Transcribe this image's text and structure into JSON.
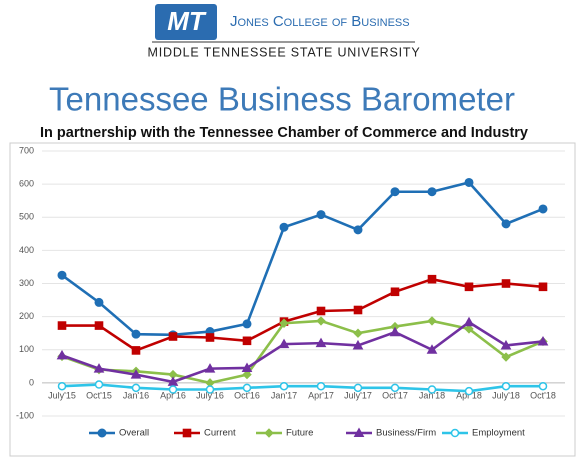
{
  "header": {
    "logo": "MT",
    "college": "Jones College of Business",
    "university": "MIDDLE TENNESSEE STATE UNIVERSITY"
  },
  "chart_data": {
    "type": "line",
    "title": "Tennessee Business Barometer",
    "subtitle": "In partnership with the Tennessee Chamber of Commerce and Industry",
    "categories": [
      "July'15",
      "Oct'15",
      "Jan'16",
      "Apr'16",
      "July'16",
      "Oct'16",
      "Jan'17",
      "Apr'17",
      "July'17",
      "Oct'17",
      "Jan'18",
      "Apr'18",
      "July'18",
      "Oct'18"
    ],
    "series": [
      {
        "name": "Overall",
        "color": "#1f6fb5",
        "marker": "circle",
        "values": [
          325,
          243,
          147,
          145,
          155,
          178,
          470,
          508,
          462,
          577,
          577,
          605,
          480,
          525
        ]
      },
      {
        "name": "Current",
        "color": "#c00000",
        "marker": "square",
        "values": [
          173,
          173,
          98,
          140,
          137,
          127,
          185,
          217,
          220,
          275,
          313,
          290,
          300,
          290
        ]
      },
      {
        "name": "Future",
        "color": "#8cbf4a",
        "marker": "diamond",
        "values": [
          80,
          40,
          35,
          25,
          0,
          25,
          180,
          187,
          150,
          170,
          187,
          163,
          78,
          125
        ]
      },
      {
        "name": "Business/Firm",
        "color": "#7030a0",
        "marker": "triangle",
        "values": [
          83,
          43,
          25,
          3,
          43,
          45,
          117,
          120,
          113,
          153,
          100,
          183,
          113,
          125
        ]
      },
      {
        "name": "Employment",
        "color": "#2ec4e8",
        "marker": "open-circle",
        "values": [
          -10,
          -5,
          -15,
          -20,
          -20,
          -15,
          -10,
          -10,
          -15,
          -15,
          -20,
          -25,
          -10,
          -10
        ]
      }
    ],
    "ylim": [
      -100,
      700
    ],
    "yticks": [
      -100,
      0,
      100,
      200,
      300,
      400,
      500,
      600,
      700
    ],
    "grid": true,
    "legend": "bottom"
  }
}
